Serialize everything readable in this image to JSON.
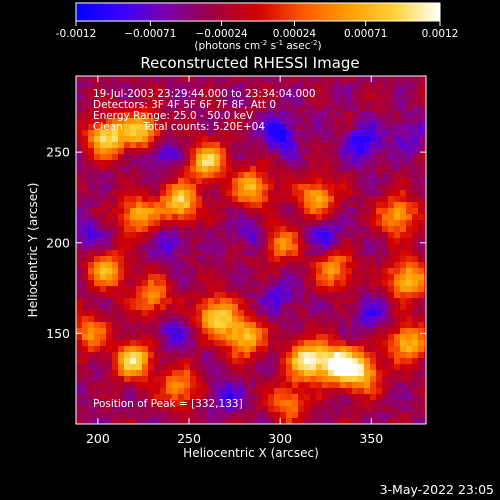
{
  "chart_data": {
    "type": "heatmap",
    "title": "Reconstructed RHESSI Image",
    "xlabel": "Heliocentric X (arcsec)",
    "ylabel": "Heliocentric Y (arcsec)",
    "xlim": [
      188,
      380
    ],
    "ylim": [
      100,
      292
    ],
    "x_ticks": [
      200,
      250,
      300,
      350
    ],
    "y_ticks": [
      150,
      200,
      250
    ],
    "colorbar": {
      "min": -0.0012,
      "max": 0.0012,
      "tick_values": [
        -0.0012,
        -0.00071,
        -0.00024,
        0.00024,
        0.00071,
        0.0012
      ],
      "tick_labels": [
        "-0.0012",
        "−0.00071",
        "−0.00024",
        "0.00024",
        "0.00071",
        "0.0012"
      ],
      "unit_main": "(photons cm",
      "unit_sup1": "-2",
      "unit_mid1": " s",
      "unit_sup2": "-1",
      "unit_mid2": " asec",
      "unit_sup3": "-2",
      "unit_end": ")",
      "stops": [
        "#0000ff",
        "#3b00ff",
        "#7a00a8",
        "#a00040",
        "#d10000",
        "#ff5a00",
        "#ff9e00",
        "#ffd23a",
        "#ffffff"
      ]
    },
    "annotations": {
      "time_range": "19-Jul-2003 23:29:44.000 to 23:34:04.000",
      "detectors": "Detectors: 3F 4F 5F 6F 7F 8F, Att 0",
      "energy": "Energy Range: 25.0 - 50.0 keV",
      "clean_label": "Clean",
      "total_counts": "Total counts: 5.20E+04",
      "peak": "Position of Peak = [332,133]"
    },
    "peak_position": [
      332,
      133
    ],
    "grid": false,
    "hot_spots": [
      {
        "x": 205,
        "y": 258,
        "w": 0.9
      },
      {
        "x": 225,
        "y": 262,
        "w": 0.8
      },
      {
        "x": 222,
        "y": 215,
        "w": 0.7
      },
      {
        "x": 245,
        "y": 222,
        "w": 0.85
      },
      {
        "x": 260,
        "y": 245,
        "w": 0.8
      },
      {
        "x": 285,
        "y": 230,
        "w": 0.75
      },
      {
        "x": 320,
        "y": 225,
        "w": 0.7
      },
      {
        "x": 365,
        "y": 215,
        "w": 0.7
      },
      {
        "x": 370,
        "y": 180,
        "w": 0.8
      },
      {
        "x": 330,
        "y": 185,
        "w": 0.6
      },
      {
        "x": 300,
        "y": 200,
        "w": 0.55
      },
      {
        "x": 205,
        "y": 185,
        "w": 0.7
      },
      {
        "x": 230,
        "y": 170,
        "w": 0.6
      },
      {
        "x": 265,
        "y": 160,
        "w": 0.85
      },
      {
        "x": 280,
        "y": 148,
        "w": 0.8
      },
      {
        "x": 315,
        "y": 135,
        "w": 0.95
      },
      {
        "x": 332,
        "y": 133,
        "w": 1.0
      },
      {
        "x": 345,
        "y": 128,
        "w": 0.75
      },
      {
        "x": 220,
        "y": 135,
        "w": 0.85
      },
      {
        "x": 245,
        "y": 120,
        "w": 0.6
      },
      {
        "x": 370,
        "y": 145,
        "w": 0.75
      },
      {
        "x": 305,
        "y": 112,
        "w": 0.55
      },
      {
        "x": 195,
        "y": 150,
        "w": 0.55
      }
    ],
    "cold_spots": [
      {
        "x": 235,
        "y": 250,
        "w": 0.7
      },
      {
        "x": 300,
        "y": 260,
        "w": 0.9
      },
      {
        "x": 345,
        "y": 255,
        "w": 0.85
      },
      {
        "x": 325,
        "y": 205,
        "w": 0.6
      },
      {
        "x": 285,
        "y": 205,
        "w": 0.55
      },
      {
        "x": 240,
        "y": 200,
        "w": 0.5
      },
      {
        "x": 195,
        "y": 205,
        "w": 0.5
      },
      {
        "x": 300,
        "y": 170,
        "w": 0.55
      },
      {
        "x": 240,
        "y": 150,
        "w": 0.5
      },
      {
        "x": 270,
        "y": 115,
        "w": 0.6
      },
      {
        "x": 350,
        "y": 160,
        "w": 0.55
      },
      {
        "x": 370,
        "y": 260,
        "w": 0.5
      }
    ]
  },
  "footer": {
    "timestamp": "3-May-2022 23:05"
  }
}
